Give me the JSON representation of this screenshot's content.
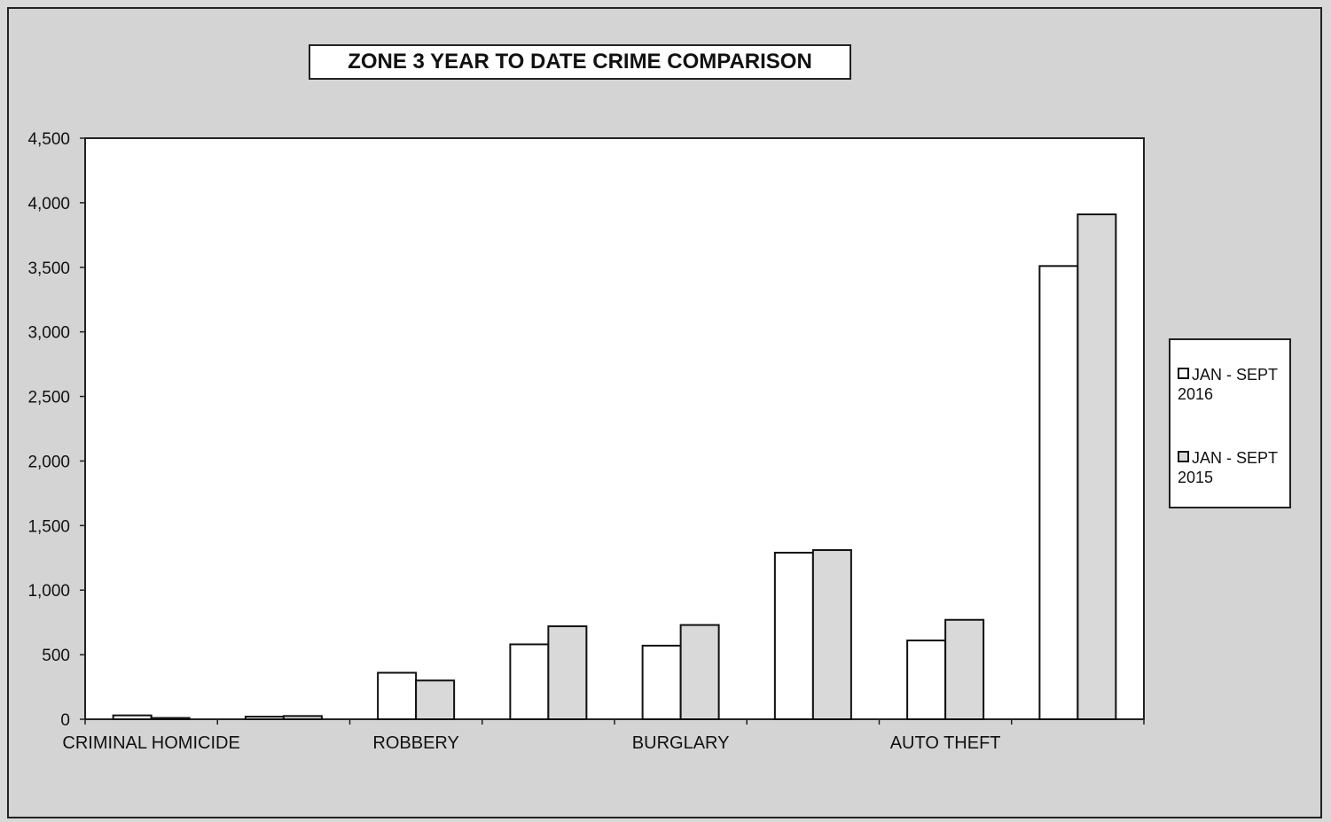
{
  "chart_data": {
    "type": "bar",
    "title": "ZONE 3  YEAR TO DATE CRIME COMPARISON",
    "categories": [
      "CRIMINAL HOMICIDE",
      "",
      "ROBBERY",
      "",
      "BURGLARY",
      "",
      "AUTO THEFT",
      ""
    ],
    "series": [
      {
        "name": "JAN - SEPT 2016",
        "values": [
          30,
          20,
          360,
          580,
          570,
          1290,
          610,
          3510
        ],
        "color": "#ffffff"
      },
      {
        "name": "JAN - SEPT 2015",
        "values": [
          10,
          25,
          300,
          720,
          730,
          1310,
          770,
          3910
        ],
        "color": "#d9d9d9"
      }
    ],
    "ylim": [
      0,
      4500
    ],
    "yticks": [
      0,
      500,
      1000,
      1500,
      2000,
      2500,
      3000,
      3500,
      4000,
      4500
    ],
    "ytick_labels": [
      "0",
      "500",
      "1,000",
      "1,500",
      "2,000",
      "2,500",
      "3,000",
      "3,500",
      "4,000",
      "4,500"
    ],
    "legend_position": "right",
    "grid": false,
    "xlabel": "",
    "ylabel": ""
  },
  "legend": {
    "item_1": "JAN - SEPT\n2016",
    "item_2": "JAN - SEPT\n2015"
  }
}
